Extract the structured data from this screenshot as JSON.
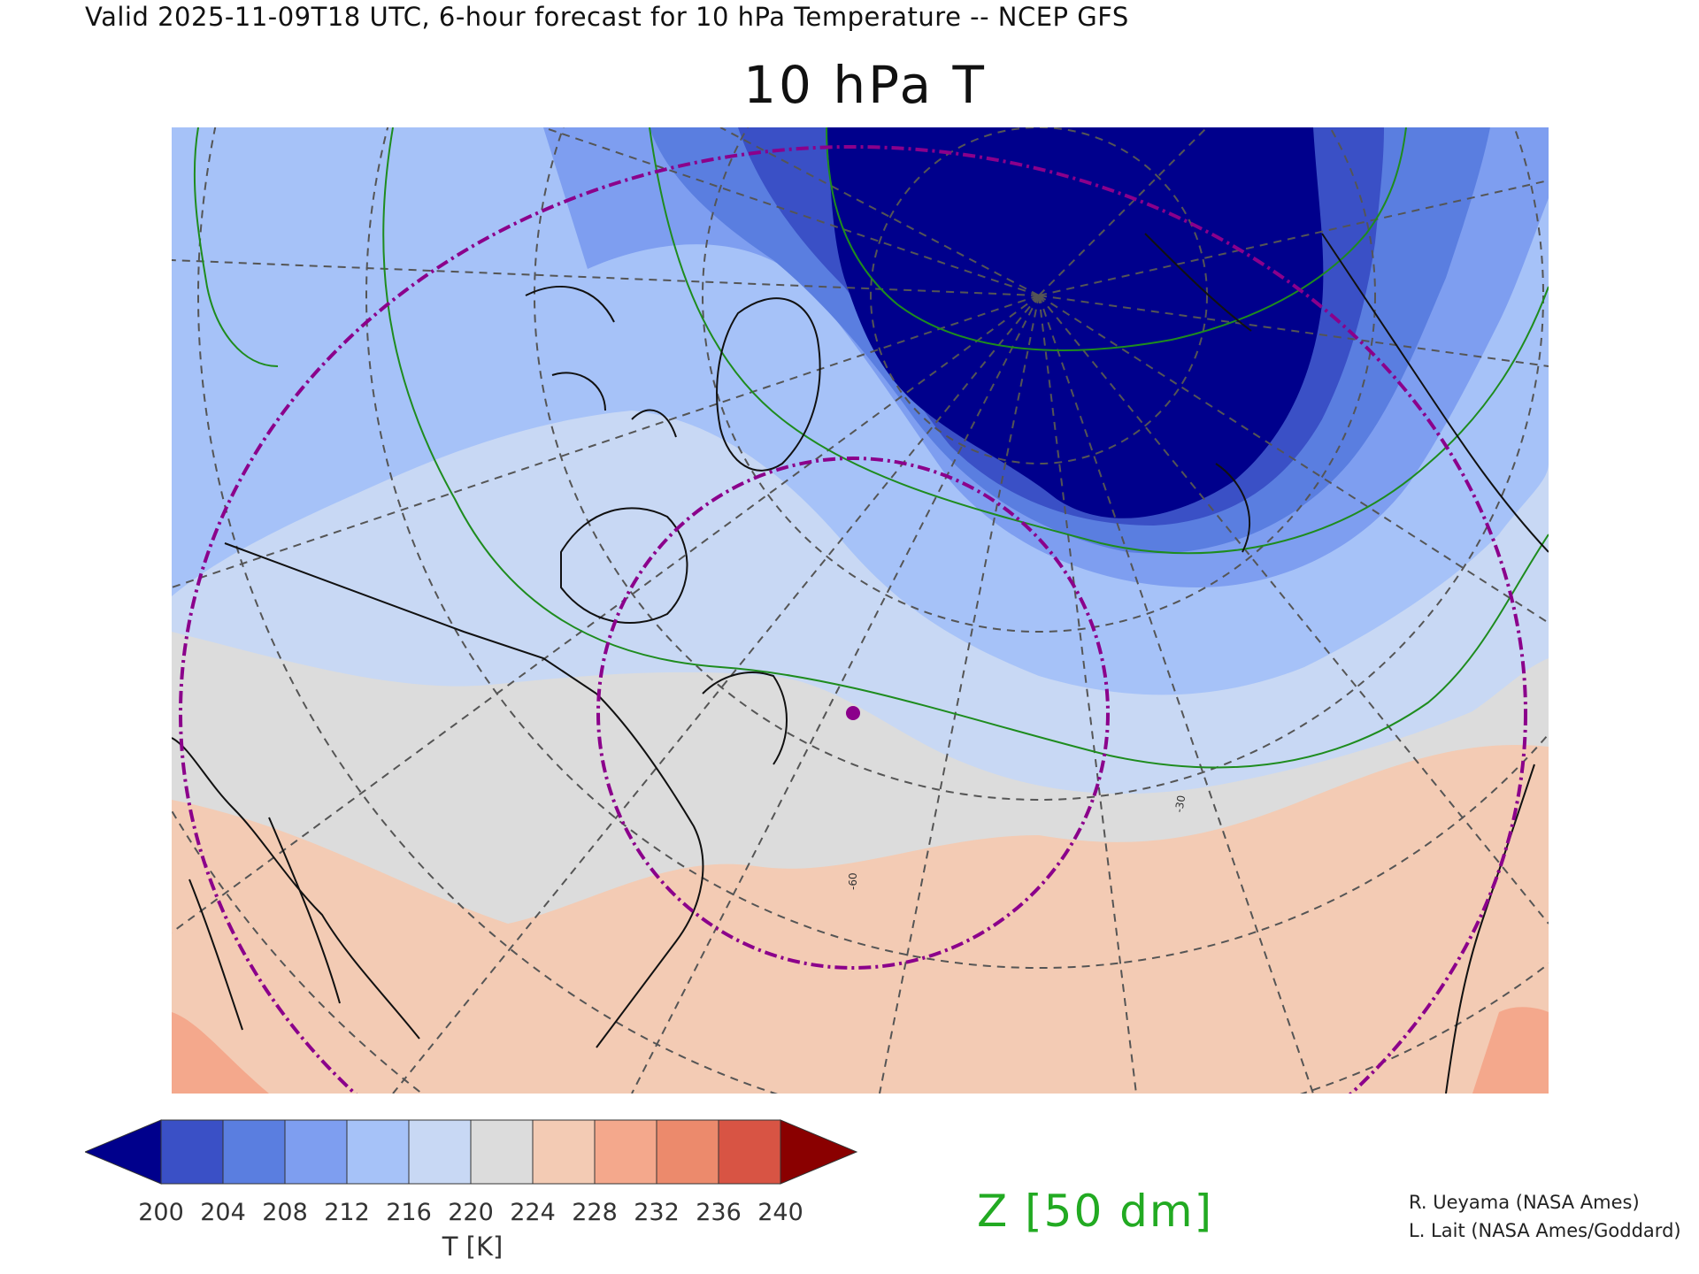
{
  "header": {
    "valid_line": "Valid 2025-11-09T18 UTC, 6-hour forecast for 10 hPa Temperature -- NCEP GFS",
    "title": "10 hPa T"
  },
  "map": {
    "contour_labels": [
      "-30",
      "-60"
    ],
    "marker_color": "#8b008b",
    "geopotential_contour_color": "#1e8c1e",
    "graticule_color": "#555555",
    "coastline_color": "#111111"
  },
  "colorbar": {
    "label": "T [K]",
    "ticks": [
      "200",
      "204",
      "208",
      "212",
      "216",
      "220",
      "224",
      "228",
      "232",
      "236",
      "240"
    ],
    "colors": [
      "#00008c",
      "#3a50c6",
      "#5a7ee0",
      "#7e9ef0",
      "#a6c2f8",
      "#c8d8f4",
      "#dcdcdc",
      "#f3cbb4",
      "#f4a88c",
      "#ec8a6c",
      "#d85444",
      "#8a0000"
    ]
  },
  "contour_legend": {
    "label": "Z [50 dm]"
  },
  "credits": [
    "R. Ueyama (NASA Ames)",
    "L. Lait (NASA Ames/Goddard)"
  ]
}
